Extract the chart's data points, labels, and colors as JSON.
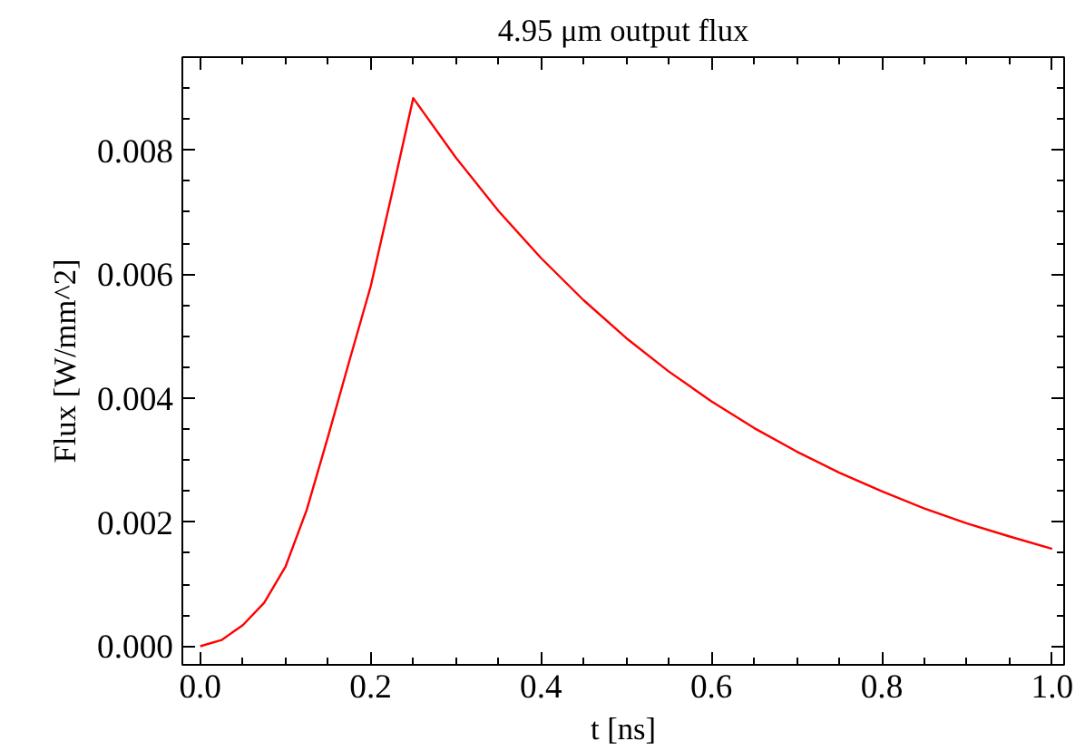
{
  "chart_data": {
    "type": "line",
    "title": "4.95 μm output flux",
    "xlabel": "t [ns]",
    "ylabel": "Flux [W/mm^2]",
    "x": [
      0,
      0.025,
      0.05,
      0.075,
      0.1,
      0.125,
      0.15,
      0.175,
      0.2,
      0.225,
      0.25,
      0.3,
      0.35,
      0.4,
      0.45,
      0.5,
      0.55,
      0.6,
      0.65,
      0.7,
      0.75,
      0.8,
      0.85,
      0.9,
      0.95,
      1.0
    ],
    "series": [
      {
        "color": "#ff0000",
        "values": [
          0,
          0.0001,
          0.00034,
          0.0007,
          0.00128,
          0.0022,
          0.00338,
          0.0046,
          0.0058,
          0.0073,
          0.00884,
          0.00788,
          0.00702,
          0.00626,
          0.00558,
          0.00497,
          0.00443,
          0.00395,
          0.00352,
          0.00314,
          0.0028,
          0.0025,
          0.00222,
          0.00198,
          0.00177,
          0.00157
        ]
      }
    ],
    "xlim": [
      -0.021,
      1.014
    ],
    "ylim": [
      -0.0003,
      0.0095
    ],
    "xticks": [
      {
        "value": 0,
        "label": "0.0"
      },
      {
        "value": 0.2,
        "label": "0.2"
      },
      {
        "value": 0.4,
        "label": "0.4"
      },
      {
        "value": 0.6,
        "label": "0.6"
      },
      {
        "value": 0.8,
        "label": "0.8"
      },
      {
        "value": 1.0,
        "label": "1.0"
      }
    ],
    "yticks": [
      {
        "value": 0,
        "label": "0.000"
      },
      {
        "value": 0.002,
        "label": "0.002"
      },
      {
        "value": 0.004,
        "label": "0.004"
      },
      {
        "value": 0.006,
        "label": "0.006"
      },
      {
        "value": 0.008,
        "label": "0.008"
      }
    ],
    "grid": false,
    "marker": "none",
    "line_style": "solid"
  }
}
